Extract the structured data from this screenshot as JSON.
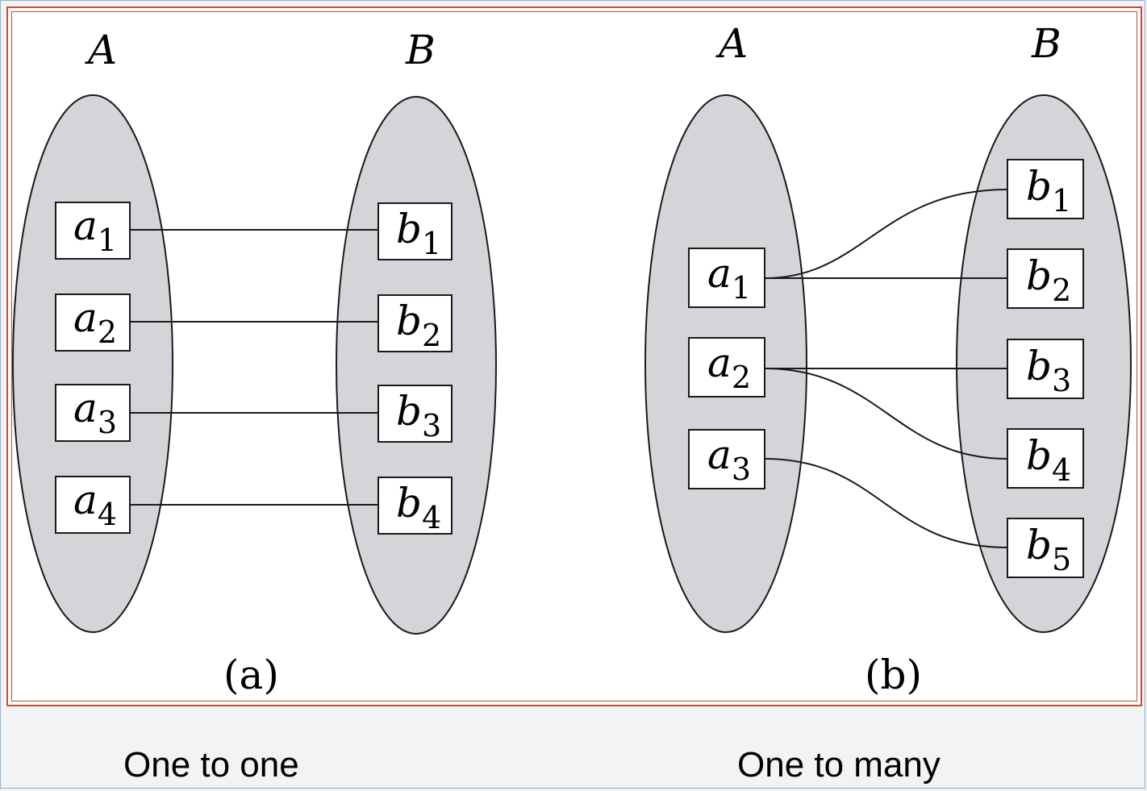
{
  "diagram": {
    "colors": {
      "set_fill": "#d4d5d8",
      "frame": "#c0503a",
      "line": "#1a1a1a"
    },
    "panels": [
      {
        "id": "a",
        "label": "(a)",
        "set_a_label": "A",
        "set_b_label": "B",
        "elements_a": [
          {
            "main": "a",
            "sub": "1"
          },
          {
            "main": "a",
            "sub": "2"
          },
          {
            "main": "a",
            "sub": "3"
          },
          {
            "main": "a",
            "sub": "4"
          }
        ],
        "elements_b": [
          {
            "main": "b",
            "sub": "1"
          },
          {
            "main": "b",
            "sub": "2"
          },
          {
            "main": "b",
            "sub": "3"
          },
          {
            "main": "b",
            "sub": "4"
          }
        ],
        "edges": [
          [
            "a1",
            "b1"
          ],
          [
            "a2",
            "b2"
          ],
          [
            "a3",
            "b3"
          ],
          [
            "a4",
            "b4"
          ]
        ]
      },
      {
        "id": "b",
        "label": "(b)",
        "set_a_label": "A",
        "set_b_label": "B",
        "elements_a": [
          {
            "main": "a",
            "sub": "1"
          },
          {
            "main": "a",
            "sub": "2"
          },
          {
            "main": "a",
            "sub": "3"
          }
        ],
        "elements_b": [
          {
            "main": "b",
            "sub": "1"
          },
          {
            "main": "b",
            "sub": "2"
          },
          {
            "main": "b",
            "sub": "3"
          },
          {
            "main": "b",
            "sub": "4"
          },
          {
            "main": "b",
            "sub": "5"
          }
        ],
        "edges": [
          [
            "a1",
            "b1"
          ],
          [
            "a1",
            "b2"
          ],
          [
            "a2",
            "b3"
          ],
          [
            "a2",
            "b4"
          ],
          [
            "a3",
            "b5"
          ]
        ]
      }
    ]
  },
  "captions": {
    "left": "One to one",
    "right": "One to many"
  }
}
